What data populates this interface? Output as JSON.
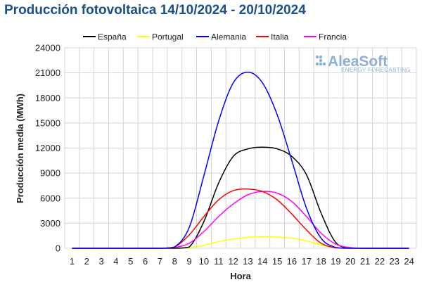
{
  "chart_data": {
    "type": "line",
    "title": "Producción fotovoltaica 14/10/2024 - 20/10/2024",
    "xlabel": "Hora",
    "ylabel": "Producción media (MWh)",
    "x": [
      1,
      2,
      3,
      4,
      5,
      6,
      7,
      8,
      9,
      10,
      11,
      12,
      13,
      14,
      15,
      16,
      17,
      18,
      19,
      20,
      21,
      22,
      23,
      24
    ],
    "ylim": [
      0,
      24000
    ],
    "yticks": [
      0,
      3000,
      6000,
      9000,
      12000,
      15000,
      18000,
      21000,
      24000
    ],
    "grid": true,
    "legend_position": "top",
    "series": [
      {
        "name": "España",
        "color": "#000000",
        "values": [
          0,
          0,
          0,
          0,
          0,
          0,
          0,
          0,
          150,
          3200,
          7800,
          11000,
          11900,
          12100,
          11900,
          11000,
          8800,
          4200,
          700,
          50,
          0,
          0,
          0,
          0
        ]
      },
      {
        "name": "Portugal",
        "color": "#ffff00",
        "values": [
          0,
          0,
          0,
          0,
          0,
          0,
          0,
          0,
          60,
          350,
          800,
          1100,
          1300,
          1380,
          1330,
          1200,
          900,
          400,
          60,
          0,
          0,
          0,
          0,
          0
        ]
      },
      {
        "name": "Alemania",
        "color": "#0000ff",
        "values": [
          0,
          0,
          0,
          0,
          0,
          0,
          0,
          150,
          2500,
          8700,
          15200,
          19800,
          21100,
          19800,
          16000,
          10500,
          4800,
          1200,
          100,
          0,
          0,
          0,
          0,
          0
        ]
      },
      {
        "name": "Italia",
        "color": "#ff0000",
        "values": [
          0,
          0,
          0,
          0,
          0,
          0,
          0,
          150,
          1600,
          3800,
          5800,
          6900,
          7100,
          6800,
          5800,
          4100,
          2200,
          600,
          50,
          0,
          0,
          0,
          0,
          0
        ]
      },
      {
        "name": "Francia",
        "color": "#ff00ff",
        "values": [
          0,
          0,
          0,
          0,
          0,
          0,
          0,
          100,
          600,
          2000,
          3800,
          5300,
          6400,
          6800,
          6600,
          5600,
          3800,
          1800,
          500,
          80,
          0,
          0,
          0,
          0
        ]
      }
    ]
  },
  "brand": {
    "name": "AleaSoft",
    "tagline": "ENERGY FORECASTING"
  }
}
